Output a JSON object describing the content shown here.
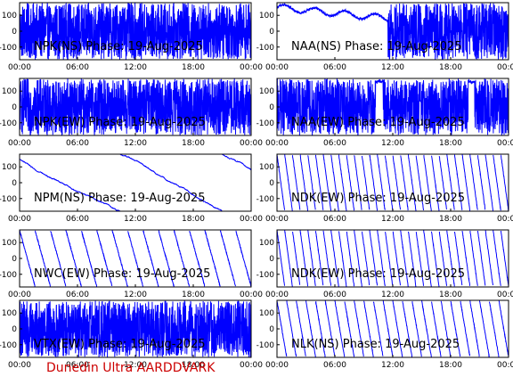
{
  "chart_data": [
    {
      "type": "line",
      "title": "NPK(NS) Phase: 19-Aug-2025",
      "series": [
        {
          "name": "NPK(NS)",
          "color": "#0000ff",
          "pattern": "dense"
        }
      ],
      "xticks": [
        "00:00",
        "06:00",
        "12:00",
        "18:00",
        "00:00"
      ],
      "yticks": [
        100,
        0,
        -100
      ],
      "xlim": [
        0,
        24
      ],
      "ylim": [
        -180,
        180
      ]
    },
    {
      "type": "line",
      "title": "NAA(NS) Phase: 19-Aug-2025",
      "series": [
        {
          "name": "NAA(NS)",
          "color": "#0000ff",
          "pattern": "mixed"
        }
      ],
      "xticks": [
        "00:00",
        "06:00",
        "12:00",
        "18:00",
        "00:00"
      ],
      "yticks": [
        100,
        0,
        -100
      ],
      "xlim": [
        0,
        24
      ],
      "ylim": [
        -180,
        180
      ]
    },
    {
      "type": "line",
      "title": "NPK(EW) Phase: 19-Aug-2025",
      "series": [
        {
          "name": "NPK(EW)",
          "color": "#0000ff",
          "pattern": "dense"
        }
      ],
      "xticks": [
        "00:00",
        "06:00",
        "12:00",
        "18:00",
        "00:00"
      ],
      "yticks": [
        100,
        0,
        -100
      ],
      "xlim": [
        0,
        24
      ],
      "ylim": [
        -180,
        180
      ]
    },
    {
      "type": "line",
      "title": "NAA(EW) Phase: 19-Aug-2025",
      "series": [
        {
          "name": "NAA(EW)",
          "color": "#0000ff",
          "pattern": "dense-gaps"
        }
      ],
      "xticks": [
        "00:00",
        "06:00",
        "12:00",
        "18:00",
        "00:00"
      ],
      "yticks": [
        100,
        0,
        -100
      ],
      "xlim": [
        0,
        24
      ],
      "ylim": [
        -180,
        180
      ]
    },
    {
      "type": "line",
      "title": "NPM(NS) Phase: 19-Aug-2025",
      "series": [
        {
          "name": "NPM(NS)",
          "color": "#0000ff",
          "pattern": "slow-drift"
        }
      ],
      "xticks": [
        "00:00",
        "06:00",
        "12:00",
        "18:00",
        "00:00"
      ],
      "yticks": [
        100,
        0,
        -100
      ],
      "xlim": [
        0,
        24
      ],
      "ylim": [
        -180,
        180
      ]
    },
    {
      "type": "line",
      "title": "NDK(EW) Phase: 19-Aug-2025",
      "series": [
        {
          "name": "NDK(EW)",
          "color": "#0000ff",
          "pattern": "sawtooth-fast"
        }
      ],
      "xticks": [
        "00:00",
        "06:00",
        "12:00",
        "18:00",
        "00:00"
      ],
      "yticks": [
        100,
        0,
        -100
      ],
      "xlim": [
        0,
        24
      ],
      "ylim": [
        -180,
        180
      ]
    },
    {
      "type": "line",
      "title": "NWC(EW) Phase: 19-Aug-2025",
      "series": [
        {
          "name": "NWC(EW)",
          "color": "#0000ff",
          "pattern": "sawtooth-slow"
        }
      ],
      "xticks": [
        "00:00",
        "06:00",
        "12:00",
        "18:00",
        "00:00"
      ],
      "yticks": [
        100,
        0,
        -100
      ],
      "xlim": [
        0,
        24
      ],
      "ylim": [
        -180,
        180
      ]
    },
    {
      "type": "line",
      "title": "NDK(EW) Phase: 19-Aug-2025",
      "series": [
        {
          "name": "NDK(EW)",
          "color": "#0000ff",
          "pattern": "sawtooth-fast"
        }
      ],
      "xticks": [
        "00:00",
        "06:00",
        "12:00",
        "18:00",
        "00:00"
      ],
      "yticks": [
        100,
        0,
        -100
      ],
      "xlim": [
        0,
        24
      ],
      "ylim": [
        -180,
        180
      ]
    },
    {
      "type": "line",
      "title": "VTX(EW) Phase: 19-Aug-2025",
      "series": [
        {
          "name": "VTX(EW)",
          "color": "#0000ff",
          "pattern": "dense-lines"
        }
      ],
      "xticks": [
        "00:00",
        "06:00",
        "12:00",
        "18:00",
        "00:00"
      ],
      "yticks": [
        100,
        0,
        -100
      ],
      "xlim": [
        0,
        24
      ],
      "ylim": [
        -180,
        180
      ]
    },
    {
      "type": "line",
      "title": "NLK(NS) Phase: 19-Aug-2025",
      "series": [
        {
          "name": "NLK(NS)",
          "color": "#0000ff",
          "pattern": "sawtooth-sparse"
        }
      ],
      "xticks": [
        "00:00",
        "06:00",
        "12:00",
        "18:00",
        "00:00"
      ],
      "yticks": [
        100,
        0,
        -100
      ],
      "xlim": [
        0,
        24
      ],
      "ylim": [
        -180,
        180
      ]
    }
  ],
  "footer": {
    "text": "Dunedin Ultra AARDDVARK",
    "color": "#cc0000"
  }
}
